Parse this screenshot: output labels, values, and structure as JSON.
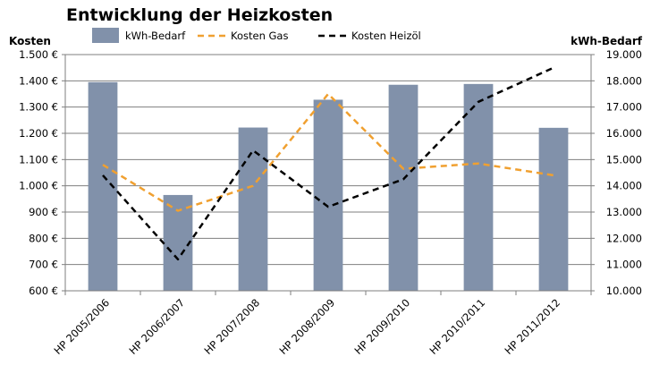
{
  "chart_data": {
    "type": "bar",
    "title": "Entwicklung der Heizkosten",
    "ylabel_left": "Kosten",
    "ylabel_right": "kWh-Bedarf",
    "categories": [
      "HP 2005/2006",
      "HP 2006/2007",
      "HP 2007/2008",
      "HP 2008/2009",
      "HP 2009/2010",
      "HP 2010/2011",
      "HP 2011/2012"
    ],
    "y_left": {
      "min": 600,
      "max": 1500,
      "step": 100,
      "tick_labels": [
        "600 €",
        "700 €",
        "800 €",
        "900 €",
        "1.000 €",
        "1.100 €",
        "1.200 €",
        "1.300 €",
        "1.400 €",
        "1.500 €"
      ]
    },
    "y_right": {
      "min": 10000,
      "max": 19000,
      "step": 1000,
      "tick_labels": [
        "10.000",
        "11.000",
        "12.000",
        "13.000",
        "14.000",
        "15.000",
        "16.000",
        "17.000",
        "18.000",
        "19.000"
      ]
    },
    "grid": "horizontal",
    "legend_position": "top",
    "series": [
      {
        "name": "kWh-Bedarf",
        "kind": "bar",
        "axis": "right",
        "color": "#8191aa",
        "values": [
          17950,
          13650,
          16220,
          17280,
          17850,
          17880,
          16210
        ]
      },
      {
        "name": "Kosten Gas",
        "kind": "line",
        "axis": "left",
        "color": "#f0a030",
        "dash": "dashed",
        "values": [
          1080,
          905,
          1000,
          1350,
          1065,
          1085,
          1040
        ]
      },
      {
        "name": "Kosten Heizöl",
        "kind": "line",
        "axis": "left",
        "color": "#000000",
        "dash": "dashed",
        "values": [
          1040,
          720,
          1135,
          920,
          1025,
          1320,
          1450
        ]
      }
    ]
  }
}
